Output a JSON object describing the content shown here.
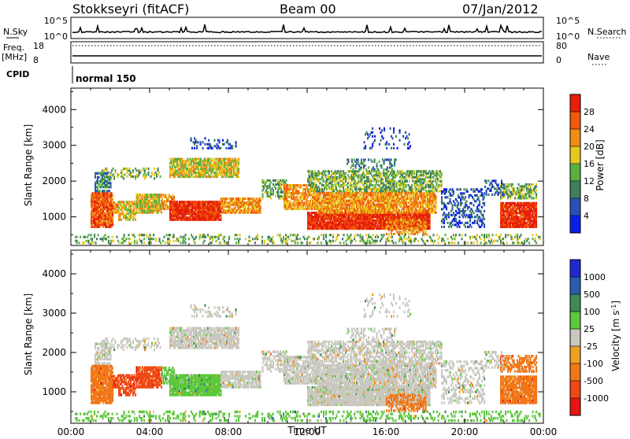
{
  "header": {
    "station": "Stokkseyri (fitACF)",
    "beam": "Beam 00",
    "date": "07/Jan/2012"
  },
  "strips": {
    "nsky_label": "N.Sky",
    "nsky_ticks": [
      "10^5",
      "10^0"
    ],
    "nsearch_label": "N.Search",
    "nsearch_ticks": [
      "10^5",
      "10^0"
    ],
    "freq_label": "Freq.",
    "freq_unit": "[MHz]",
    "freq_ticks": [
      "18",
      "8"
    ],
    "nave_label": "Nave",
    "nave_ticks": [
      "80",
      "0"
    ],
    "cpid_label": "CPID",
    "cpid_value": "normal 150"
  },
  "colors": {
    "power": [
      "#0a1ee6",
      "#2b4fb8",
      "#3f7f5e",
      "#58b040",
      "#e6c81e",
      "#f08c14",
      "#f05a0a",
      "#e61e0a"
    ],
    "velocity": [
      "#1e2ad0",
      "#2a5db0",
      "#3f8a55",
      "#5cc83a",
      "#c8c8c0",
      "#f0a020",
      "#f07818",
      "#f04814",
      "#e81414"
    ]
  },
  "chart_data": [
    {
      "type": "heatmap",
      "name": "power-panel",
      "ylabel": "Slant Range [km]",
      "yticks": [
        "4000",
        "3000",
        "2000",
        "1000"
      ],
      "ylim": [
        200,
        4600
      ],
      "xlim": [
        0,
        24
      ],
      "colorbar_label": "Power [dB]",
      "colorbar_ticks": [
        "28",
        "24",
        "20",
        "16",
        "12",
        "8",
        "4"
      ]
    },
    {
      "type": "heatmap",
      "name": "velocity-panel",
      "ylabel": "Slant Range [km]",
      "yticks": [
        "4000",
        "3000",
        "2000",
        "1000"
      ],
      "ylim": [
        200,
        4600
      ],
      "xlim": [
        0,
        24
      ],
      "xlabel": "Time UT",
      "xticks": [
        "00:00",
        "04:00",
        "08:00",
        "12:00",
        "16:00",
        "20:00",
        "00:00"
      ],
      "colorbar_label": "Velocity [m s",
      "colorbar_unit_sup": "-1",
      "colorbar_unit_end": "]",
      "colorbar_ticks": [
        "1000",
        "500",
        "100",
        "25",
        "-25",
        "-100",
        "-500",
        "-1000"
      ]
    }
  ]
}
